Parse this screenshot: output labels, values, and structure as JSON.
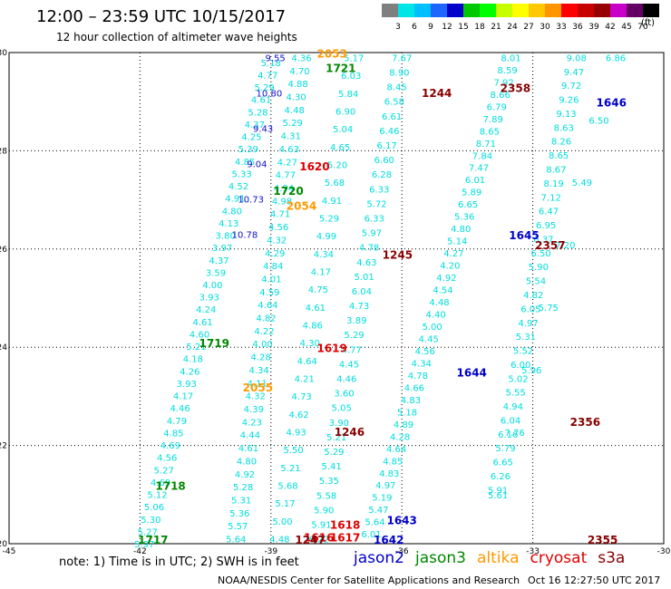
{
  "title": "12:00 – 23:59 UTC 10/15/2017",
  "subtitle": "12 hour collection of altimeter wave heights",
  "colorbar": {
    "unit": "(ft)",
    "ticks": [
      "3",
      "6",
      "9",
      "12",
      "15",
      "18",
      "21",
      "24",
      "27",
      "30",
      "33",
      "36",
      "39",
      "42",
      "45",
      "70"
    ],
    "colors": [
      "#7f7f7f",
      "#00e5e5",
      "#00bfff",
      "#1e64ff",
      "#0000c8",
      "#00c800",
      "#00ff00",
      "#c8ff00",
      "#ffff00",
      "#ffc800",
      "#ff9600",
      "#ff0000",
      "#c80000",
      "#960000",
      "#c800c8",
      "#640064",
      "#000000"
    ]
  },
  "note": "note: 1) Time is in UTC; 2) SWH is in feet",
  "legend": [
    {
      "name": "jason2",
      "color": "#0000cc"
    },
    {
      "name": "jason3",
      "color": "#008800"
    },
    {
      "name": "altika",
      "color": "#ff9900"
    },
    {
      "name": "cryosat",
      "color": "#dd0000"
    },
    {
      "name": "s3a",
      "color": "#880000"
    }
  ],
  "credit": "NOAA/NESDIS Center for Satellite Applications and Research",
  "stamp": "Oct 16 12:27:50 UTC 2017",
  "map_data": {
    "lon_range": [
      -45,
      -30
    ],
    "lat_range": [
      20,
      30
    ],
    "lon_ticks": [
      -45,
      -42,
      -39,
      -36,
      -33,
      -30
    ],
    "lat_ticks": [
      20,
      22,
      24,
      26,
      28,
      30
    ],
    "grid": true,
    "tracks": [
      {
        "name": "s3a-1717",
        "color": "#00dddd",
        "from": [
          -41.9,
          20.0
        ],
        "to": [
          -39.0,
          29.8
        ],
        "values": [
          "5.97",
          "5.27",
          "5.30",
          "5.06",
          "5.12",
          "4.69",
          "5.27",
          "4.56",
          "4.69",
          "4.85",
          "4.79",
          "4.46",
          "4.17",
          "3.93",
          "4.26",
          "4.18",
          "5.21",
          "4.60",
          "4.61",
          "4.24",
          "3.93",
          "4.00",
          "3.59",
          "4.37",
          "3.97",
          "3.80",
          "4.13",
          "4.80",
          "4.91",
          "4.52",
          "5.33",
          "4.85",
          "5.39",
          "4.25",
          "4.37",
          "5.28",
          "4.61",
          "5.29",
          "4.77",
          "5.18"
        ]
      },
      {
        "name": "s3a-2054",
        "color": "#00dddd",
        "from": [
          -39.8,
          20.1
        ],
        "to": [
          -38.3,
          29.9
        ],
        "values": [
          "5.64",
          "5.57",
          "5.36",
          "5.31",
          "5.28",
          "4.92",
          "4.80",
          "4.61",
          "4.44",
          "4.23",
          "4.39",
          "4.32",
          "4.11",
          "4.34",
          "4.28",
          "4.00",
          "4.22",
          "4.82",
          "4.64",
          "4.59",
          "4.01",
          "4.84",
          "4.29",
          "4.32",
          "4.56",
          "4.71",
          "4.98",
          "4.94",
          "4.77",
          "4.27",
          "4.63",
          "4.31",
          "5.29",
          "4.48",
          "4.30",
          "4.88",
          "4.70",
          "4.36"
        ]
      },
      {
        "name": "s3a-1245",
        "color": "#00dddd",
        "from": [
          -38.8,
          20.1
        ],
        "to": [
          -37.1,
          29.9
        ],
        "values": [
          "4.48",
          "5.00",
          "5.17",
          "5.68",
          "5.21",
          "5.50",
          "4.93",
          "4.62",
          "4.73",
          "4.21",
          "4.64",
          "4.30",
          "4.86",
          "4.61",
          "4.75",
          "4.17",
          "4.34",
          "4.99",
          "5.29",
          "4.91",
          "5.68",
          "5.20",
          "4.65",
          "5.04",
          "6.90",
          "5.84",
          "6.03",
          "5.17"
        ]
      },
      {
        "name": "s3a-1620",
        "color": "#00dddd",
        "from": [
          -37.9,
          20.1
        ],
        "to": [
          -36.0,
          29.9
        ],
        "values": [
          "6.22",
          "5.91",
          "5.90",
          "5.58",
          "5.35",
          "5.41",
          "5.29",
          "5.21",
          "3.90",
          "5.05",
          "3.60",
          "4.46",
          "4.45",
          "4.77",
          "5.29",
          "3.89",
          "4.73",
          "6.04",
          "5.01",
          "4.63",
          "4.78",
          "5.97",
          "6.33",
          "5.72",
          "6.33",
          "6.28",
          "6.60",
          "6.17",
          "6.46",
          "6.61",
          "6.58",
          "8.45",
          "8.90",
          "7.67"
        ]
      },
      {
        "name": "s3a-1643",
        "color": "#00dddd",
        "from": [
          -36.7,
          20.2
        ],
        "to": [
          -33.5,
          29.9
        ],
        "values": [
          "6.01",
          "5.64",
          "5.47",
          "5.19",
          "4.97",
          "4.83",
          "4.85",
          "4.64",
          "4.28",
          "4.89",
          "5.18",
          "4.83",
          "4.66",
          "4.78",
          "4.34",
          "4.56",
          "4.45",
          "5.00",
          "4.40",
          "4.48",
          "4.54",
          "4.92",
          "4.20",
          "4.27",
          "5.14",
          "4.80",
          "5.36",
          "6.65",
          "5.89",
          "6.01",
          "7.47",
          "7.84",
          "8.71",
          "8.65",
          "7.89",
          "6.79",
          "8.66",
          "7.92",
          "8.59",
          "8.01"
        ]
      },
      {
        "name": "s3a-2356",
        "color": "#00dddd",
        "from": [
          -33.8,
          21.0
        ],
        "to": [
          -31.1,
          29.9
        ],
        "values": [
          "5.61",
          "7.76",
          "5.96",
          "5.75",
          "7.20",
          "5.49",
          "6.50",
          "6.86"
        ]
      },
      {
        "name": "s3a-2357",
        "color": "#00dddd",
        "from": [
          -33.8,
          21.1
        ],
        "to": [
          -32.0,
          29.9
        ],
        "values": [
          "5.91",
          "6.26",
          "6.65",
          "5.79",
          "6.16",
          "6.04",
          "4.94",
          "5.55",
          "5.02",
          "6.00",
          "5.52",
          "5.31",
          "4.97",
          "6.05",
          "4.82",
          "5.54",
          "5.90",
          "6.50",
          "6.37",
          "6.95",
          "6.47",
          "7.12",
          "8.19",
          "8.67",
          "8.65",
          "8.26",
          "8.63",
          "9.13",
          "9.26",
          "9.72",
          "9.47",
          "9.08"
        ]
      },
      {
        "name": "s3a-1721",
        "color": "#1010d0",
        "from": [
          -39.6,
          26.3
        ],
        "to": [
          -38.9,
          29.9
        ],
        "values": [
          "10.78",
          "10.73",
          "9.04",
          "9.43",
          "10.80",
          "9.55"
        ]
      }
    ],
    "labels": [
      {
        "text": "1717",
        "satellite": "jason3",
        "lon": -41.7,
        "lat": 20.0
      },
      {
        "text": "1718",
        "satellite": "jason3",
        "lon": -41.3,
        "lat": 21.1
      },
      {
        "text": "1719",
        "satellite": "jason3",
        "lon": -40.3,
        "lat": 24.0
      },
      {
        "text": "1720",
        "satellite": "jason3",
        "lon": -38.6,
        "lat": 27.1
      },
      {
        "text": "1721",
        "satellite": "jason3",
        "lon": -37.4,
        "lat": 29.6
      },
      {
        "text": "2053",
        "satellite": "altika",
        "lon": -37.6,
        "lat": 29.9
      },
      {
        "text": "2054",
        "satellite": "altika",
        "lon": -38.3,
        "lat": 26.8
      },
      {
        "text": "2055",
        "satellite": "altika",
        "lon": -39.3,
        "lat": 23.1
      },
      {
        "text": "1616",
        "satellite": "cryosat",
        "lon": -37.9,
        "lat": 20.05
      },
      {
        "text": "1617",
        "satellite": "cryosat",
        "lon": -37.3,
        "lat": 20.05
      },
      {
        "text": "1618",
        "satellite": "cryosat",
        "lon": -37.3,
        "lat": 20.3
      },
      {
        "text": "1619",
        "satellite": "cryosat",
        "lon": -37.6,
        "lat": 23.9
      },
      {
        "text": "1620",
        "satellite": "cryosat",
        "lon": -38.0,
        "lat": 27.6
      },
      {
        "text": "1642",
        "satellite": "jason2",
        "lon": -36.3,
        "lat": 20.0
      },
      {
        "text": "1643",
        "satellite": "jason2",
        "lon": -36.0,
        "lat": 20.4
      },
      {
        "text": "1644",
        "satellite": "jason2",
        "lon": -34.4,
        "lat": 23.4
      },
      {
        "text": "1645",
        "satellite": "jason2",
        "lon": -33.2,
        "lat": 26.2
      },
      {
        "text": "1646",
        "satellite": "jason2",
        "lon": -31.2,
        "lat": 28.9
      },
      {
        "text": "1245",
        "satellite": "s3a",
        "lon": -36.1,
        "lat": 25.8
      },
      {
        "text": "1246",
        "satellite": "s3a",
        "lon": -37.2,
        "lat": 22.2
      },
      {
        "text": "1247",
        "satellite": "s3a",
        "lon": -38.1,
        "lat": 20.0
      },
      {
        "text": "1244",
        "satellite": "s3a",
        "lon": -35.2,
        "lat": 29.1
      },
      {
        "text": "2355",
        "satellite": "s3a",
        "lon": -31.4,
        "lat": 20.0
      },
      {
        "text": "2356",
        "satellite": "s3a",
        "lon": -31.8,
        "lat": 22.4
      },
      {
        "text": "2357",
        "satellite": "s3a",
        "lon": -32.6,
        "lat": 26.0
      },
      {
        "text": "2358",
        "satellite": "s3a",
        "lon": -33.4,
        "lat": 29.2
      }
    ]
  }
}
